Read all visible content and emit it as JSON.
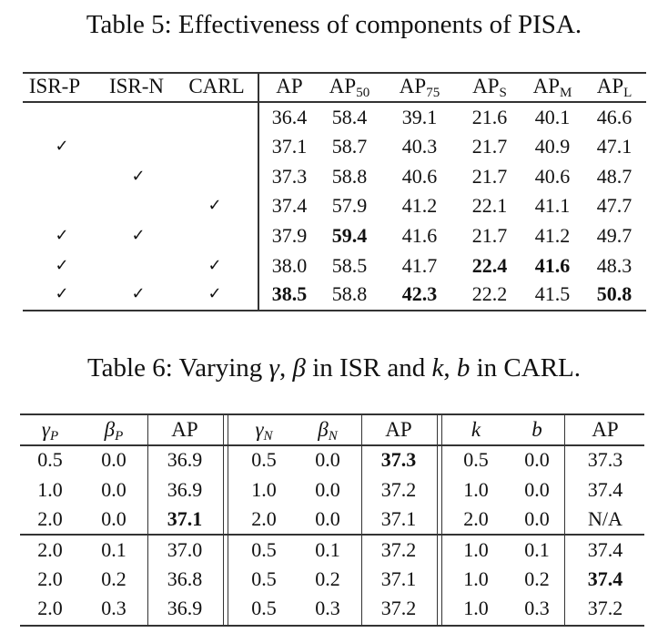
{
  "table5": {
    "caption": "Table 5: Effectiveness of components of PISA.",
    "columns": [
      {
        "base": "ISR-P",
        "sub": ""
      },
      {
        "base": "ISR-N",
        "sub": ""
      },
      {
        "base": "CARL",
        "sub": ""
      },
      {
        "base": "AP",
        "sub": ""
      },
      {
        "base": "AP",
        "sub": "50"
      },
      {
        "base": "AP",
        "sub": "75"
      },
      {
        "base": "AP",
        "sub": "S"
      },
      {
        "base": "AP",
        "sub": "M"
      },
      {
        "base": "AP",
        "sub": "L"
      }
    ],
    "check_glyph": "✓",
    "rows": [
      {
        "isr_p": "",
        "isr_n": "",
        "carl": "",
        "values": [
          "36.4",
          "58.4",
          "39.1",
          "21.6",
          "40.1",
          "46.6"
        ],
        "bold": [
          false,
          false,
          false,
          false,
          false,
          false
        ]
      },
      {
        "isr_p": "✓",
        "isr_n": "",
        "carl": "",
        "values": [
          "37.1",
          "58.7",
          "40.3",
          "21.7",
          "40.9",
          "47.1"
        ],
        "bold": [
          false,
          false,
          false,
          false,
          false,
          false
        ]
      },
      {
        "isr_p": "",
        "isr_n": "✓",
        "carl": "",
        "values": [
          "37.3",
          "58.8",
          "40.6",
          "21.7",
          "40.6",
          "48.7"
        ],
        "bold": [
          false,
          false,
          false,
          false,
          false,
          false
        ]
      },
      {
        "isr_p": "",
        "isr_n": "",
        "carl": "✓",
        "values": [
          "37.4",
          "57.9",
          "41.2",
          "22.1",
          "41.1",
          "47.7"
        ],
        "bold": [
          false,
          false,
          false,
          false,
          false,
          false
        ]
      },
      {
        "isr_p": "✓",
        "isr_n": "✓",
        "carl": "",
        "values": [
          "37.9",
          "59.4",
          "41.6",
          "21.7",
          "41.2",
          "49.7"
        ],
        "bold": [
          false,
          true,
          false,
          false,
          false,
          false
        ]
      },
      {
        "isr_p": "✓",
        "isr_n": "",
        "carl": "✓",
        "values": [
          "38.0",
          "58.5",
          "41.7",
          "22.4",
          "41.6",
          "48.3"
        ],
        "bold": [
          false,
          false,
          false,
          true,
          true,
          false
        ]
      },
      {
        "isr_p": "✓",
        "isr_n": "✓",
        "carl": "✓",
        "values": [
          "38.5",
          "58.8",
          "42.3",
          "22.2",
          "41.5",
          "50.8"
        ],
        "bold": [
          true,
          false,
          true,
          false,
          false,
          true
        ]
      }
    ]
  },
  "table6": {
    "caption_parts": [
      {
        "text": "Table 6: Varying ",
        "math": false
      },
      {
        "text": "γ",
        "math": true
      },
      {
        "text": ", ",
        "math": false
      },
      {
        "text": "β",
        "math": true
      },
      {
        "text": " in ISR and ",
        "math": false
      },
      {
        "text": "k",
        "math": true
      },
      {
        "text": ", ",
        "math": false
      },
      {
        "text": "b",
        "math": true
      },
      {
        "text": " in CARL.",
        "math": false
      }
    ],
    "columns": [
      {
        "base": "γ",
        "sub": "P",
        "math": true
      },
      {
        "base": "β",
        "sub": "P",
        "math": true
      },
      {
        "base": "AP",
        "sub": "",
        "math": false
      },
      {
        "base": "γ",
        "sub": "N",
        "math": true
      },
      {
        "base": "β",
        "sub": "N",
        "math": true
      },
      {
        "base": "AP",
        "sub": "",
        "math": false
      },
      {
        "base": "k",
        "sub": "",
        "math": true
      },
      {
        "base": "b",
        "sub": "",
        "math": true
      },
      {
        "base": "AP",
        "sub": "",
        "math": false
      }
    ],
    "rows": [
      {
        "values": [
          "0.5",
          "0.0",
          "36.9",
          "0.5",
          "0.0",
          "37.3",
          "0.5",
          "0.0",
          "37.3"
        ],
        "bold": [
          false,
          false,
          false,
          false,
          false,
          true,
          false,
          false,
          false
        ]
      },
      {
        "values": [
          "1.0",
          "0.0",
          "36.9",
          "1.0",
          "0.0",
          "37.2",
          "1.0",
          "0.0",
          "37.4"
        ],
        "bold": [
          false,
          false,
          false,
          false,
          false,
          false,
          false,
          false,
          false
        ]
      },
      {
        "values": [
          "2.0",
          "0.0",
          "37.1",
          "2.0",
          "0.0",
          "37.1",
          "2.0",
          "0.0",
          "N/A"
        ],
        "bold": [
          false,
          false,
          true,
          false,
          false,
          false,
          false,
          false,
          false
        ]
      },
      {
        "values": [
          "2.0",
          "0.1",
          "37.0",
          "0.5",
          "0.1",
          "37.2",
          "1.0",
          "0.1",
          "37.4"
        ],
        "bold": [
          false,
          false,
          false,
          false,
          false,
          false,
          false,
          false,
          false
        ]
      },
      {
        "values": [
          "2.0",
          "0.2",
          "36.8",
          "0.5",
          "0.2",
          "37.1",
          "1.0",
          "0.2",
          "37.4"
        ],
        "bold": [
          false,
          false,
          false,
          false,
          false,
          false,
          false,
          false,
          true
        ]
      },
      {
        "values": [
          "2.0",
          "0.3",
          "36.9",
          "0.5",
          "0.3",
          "37.2",
          "1.0",
          "0.3",
          "37.2"
        ],
        "bold": [
          false,
          false,
          false,
          false,
          false,
          false,
          false,
          false,
          false
        ]
      }
    ]
  }
}
